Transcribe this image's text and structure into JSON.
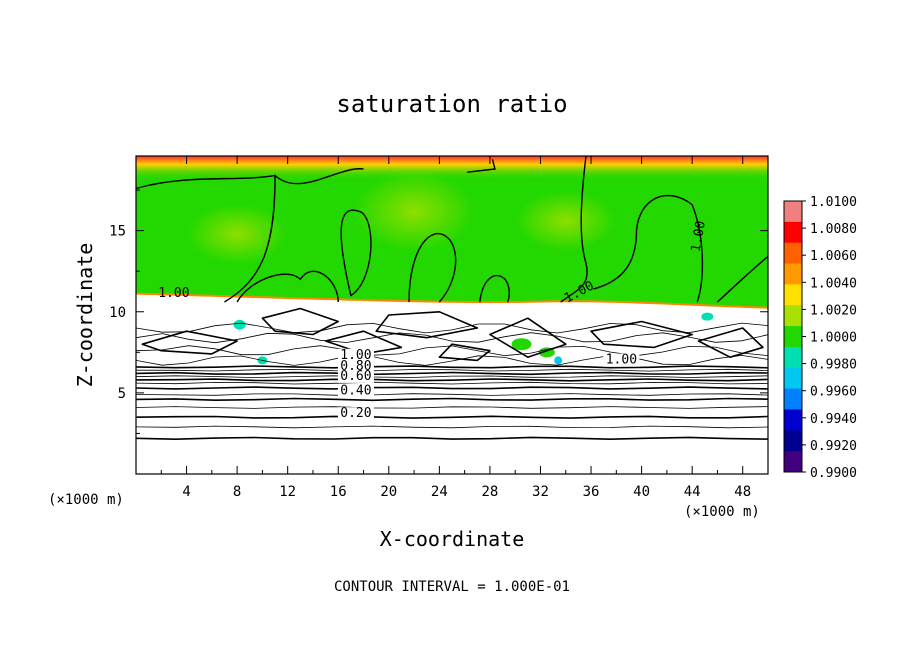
{
  "chart_data": {
    "type": "heatmap",
    "title": "saturation ratio",
    "xlabel": "X-coordinate",
    "ylabel": "Z-coordinate",
    "x_unit": "(×1000 m)",
    "y_unit": "(×1000 m)",
    "xlim": [
      0,
      50
    ],
    "ylim": [
      0,
      19.6
    ],
    "x_ticks": [
      "4",
      "8",
      "12",
      "16",
      "20",
      "24",
      "28",
      "32",
      "36",
      "40",
      "44",
      "48"
    ],
    "y_ticks": [
      "5",
      "10",
      "15"
    ],
    "colorbar": {
      "labels": [
        "1.0100",
        "1.0080",
        "1.0060",
        "1.0040",
        "1.0020",
        "1.0000",
        "0.9980",
        "0.9960",
        "0.9940",
        "0.9920",
        "0.9900"
      ],
      "colors": [
        "#f08080",
        "#ff0000",
        "#ff6000",
        "#ff9900",
        "#ffe000",
        "#a8e000",
        "#22d800",
        "#00e0b0",
        "#00c8f0",
        "#0080ff",
        "#0000d0",
        "#000090",
        "#400080"
      ]
    },
    "contour_labels": [
      {
        "text": "1.00",
        "x": 3.0,
        "z": 10.9
      },
      {
        "text": "1.00",
        "x": 35.2,
        "z": 11.0
      },
      {
        "text": "1.00",
        "x": 44.8,
        "z": 14.6
      },
      {
        "text": "1.00",
        "x": 38.4,
        "z": 6.8
      },
      {
        "text": "1.00",
        "x": 17.4,
        "z": 7.1
      },
      {
        "text": "0.80",
        "x": 17.4,
        "z": 6.4
      },
      {
        "text": "0.60",
        "x": 17.4,
        "z": 5.8
      },
      {
        "text": "0.40",
        "x": 17.4,
        "z": 4.9
      },
      {
        "text": "0.20",
        "x": 17.4,
        "z": 3.5
      }
    ],
    "cloud_top_km": 10.5,
    "contour_interval_value": "1.000E-01"
  },
  "footer": {
    "contour_interval": "CONTOUR INTERVAL = 1.000E-01"
  }
}
